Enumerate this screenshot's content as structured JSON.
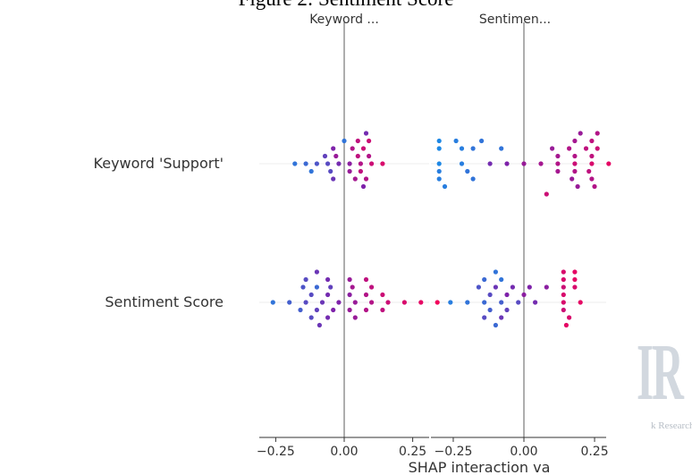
{
  "figure_title": "Figure 2: Sentiment Score",
  "watermark": {
    "logo_text": "IR",
    "text": "k Research"
  },
  "chart_data": {
    "type": "scatter",
    "plot": "shap_interaction_summary",
    "xlabel": "SHAP interaction va",
    "rows": [
      "Keyword 'Support'",
      "Sentiment Score"
    ],
    "columns": [
      "Keyword ...",
      "Sentimen..."
    ],
    "xlim": [
      -0.3,
      0.32
    ],
    "ticks": [
      -0.25,
      0.0,
      0.25
    ],
    "tick_labels": [
      "−0.25",
      "0.00",
      "0.25"
    ],
    "grid": false,
    "legend": "none",
    "colormap": {
      "low": "#1e88e5",
      "high": "#ff0052"
    },
    "point_lanes": [
      -4,
      -3,
      -2,
      -1,
      0,
      1,
      2,
      3,
      4
    ],
    "panels": [
      {
        "row": "Keyword 'Support'",
        "column": "Keyword ...",
        "points": [
          [
            0.08,
            -4,
            0.45
          ],
          [
            0.0,
            -3,
            0.1
          ],
          [
            0.05,
            -3,
            0.75
          ],
          [
            0.09,
            -3,
            0.8
          ],
          [
            -0.04,
            -2,
            0.5
          ],
          [
            0.03,
            -2,
            0.7
          ],
          [
            0.07,
            -2,
            0.8
          ],
          [
            -0.07,
            -1,
            0.35
          ],
          [
            -0.03,
            -1,
            0.6
          ],
          [
            0.05,
            -1,
            0.75
          ],
          [
            0.09,
            -1,
            0.7
          ],
          [
            -0.18,
            0,
            0.1
          ],
          [
            -0.14,
            0,
            0.15
          ],
          [
            -0.1,
            0,
            0.25
          ],
          [
            -0.06,
            0,
            0.3
          ],
          [
            -0.02,
            0,
            0.45
          ],
          [
            0.02,
            0,
            0.55
          ],
          [
            0.06,
            0,
            0.7
          ],
          [
            0.1,
            0,
            0.8
          ],
          [
            0.14,
            0,
            0.85
          ],
          [
            -0.12,
            1,
            0.1
          ],
          [
            -0.05,
            1,
            0.3
          ],
          [
            0.02,
            1,
            0.6
          ],
          [
            0.06,
            1,
            0.75
          ],
          [
            -0.04,
            2,
            0.4
          ],
          [
            0.04,
            2,
            0.65
          ],
          [
            0.08,
            2,
            0.7
          ],
          [
            0.07,
            3,
            0.5
          ]
        ]
      },
      {
        "row": "Keyword 'Support'",
        "column": "Sentimen...",
        "points": [
          [
            0.2,
            -4,
            0.6
          ],
          [
            0.26,
            -4,
            0.7
          ],
          [
            -0.3,
            -3,
            0.0
          ],
          [
            -0.24,
            -3,
            0.05
          ],
          [
            -0.15,
            -3,
            0.1
          ],
          [
            0.18,
            -3,
            0.65
          ],
          [
            0.24,
            -3,
            0.75
          ],
          [
            -0.3,
            -2,
            0.0
          ],
          [
            -0.22,
            -2,
            0.05
          ],
          [
            -0.18,
            -2,
            0.1
          ],
          [
            -0.08,
            -2,
            0.1
          ],
          [
            0.1,
            -2,
            0.6
          ],
          [
            0.16,
            -2,
            0.7
          ],
          [
            0.22,
            -2,
            0.75
          ],
          [
            0.26,
            -2,
            0.8
          ],
          [
            0.12,
            -1,
            0.65
          ],
          [
            0.18,
            -1,
            0.7
          ],
          [
            0.24,
            -1,
            0.75
          ],
          [
            -0.3,
            0,
            0.0
          ],
          [
            -0.22,
            0,
            0.05
          ],
          [
            -0.12,
            0,
            0.45
          ],
          [
            -0.06,
            0,
            0.5
          ],
          [
            0.0,
            0,
            0.6
          ],
          [
            0.06,
            0,
            0.65
          ],
          [
            0.12,
            0,
            0.7
          ],
          [
            0.18,
            0,
            0.8
          ],
          [
            0.24,
            0,
            0.85
          ],
          [
            0.3,
            0,
            0.9
          ],
          [
            -0.3,
            1,
            0.05
          ],
          [
            -0.2,
            1,
            0.1
          ],
          [
            0.12,
            1,
            0.65
          ],
          [
            0.18,
            1,
            0.7
          ],
          [
            0.23,
            1,
            0.75
          ],
          [
            -0.3,
            2,
            0.05
          ],
          [
            -0.18,
            2,
            0.1
          ],
          [
            0.17,
            2,
            0.6
          ],
          [
            0.24,
            2,
            0.7
          ],
          [
            -0.28,
            3,
            0.05
          ],
          [
            0.19,
            3,
            0.6
          ],
          [
            0.25,
            3,
            0.7
          ],
          [
            0.08,
            4,
            0.8
          ]
        ]
      },
      {
        "row": "Sentiment Score",
        "column": "Keyword ...",
        "points": [
          [
            -0.1,
            -4,
            0.4
          ],
          [
            -0.14,
            -3,
            0.3
          ],
          [
            -0.06,
            -3,
            0.45
          ],
          [
            0.02,
            -3,
            0.6
          ],
          [
            0.08,
            -3,
            0.75
          ],
          [
            -0.15,
            -2,
            0.25
          ],
          [
            -0.1,
            -2,
            0.15
          ],
          [
            -0.05,
            -2,
            0.35
          ],
          [
            0.03,
            -2,
            0.65
          ],
          [
            0.1,
            -2,
            0.75
          ],
          [
            -0.12,
            -1,
            0.3
          ],
          [
            -0.06,
            -1,
            0.45
          ],
          [
            0.02,
            -1,
            0.55
          ],
          [
            0.08,
            -1,
            0.7
          ],
          [
            0.14,
            -1,
            0.8
          ],
          [
            -0.26,
            0,
            0.1
          ],
          [
            -0.2,
            0,
            0.2
          ],
          [
            -0.14,
            0,
            0.3
          ],
          [
            -0.08,
            0,
            0.4
          ],
          [
            -0.02,
            0,
            0.5
          ],
          [
            0.04,
            0,
            0.6
          ],
          [
            0.1,
            0,
            0.7
          ],
          [
            0.16,
            0,
            0.8
          ],
          [
            0.22,
            0,
            0.85
          ],
          [
            0.28,
            0,
            0.9
          ],
          [
            0.34,
            0,
            0.95
          ],
          [
            -0.16,
            1,
            0.2
          ],
          [
            -0.1,
            1,
            0.35
          ],
          [
            -0.04,
            1,
            0.5
          ],
          [
            0.02,
            1,
            0.6
          ],
          [
            0.08,
            1,
            0.7
          ],
          [
            0.14,
            1,
            0.75
          ],
          [
            -0.12,
            2,
            0.3
          ],
          [
            -0.06,
            2,
            0.45
          ],
          [
            0.04,
            2,
            0.6
          ],
          [
            -0.09,
            3,
            0.4
          ]
        ]
      },
      {
        "row": "Sentiment Score",
        "column": "Sentimen...",
        "points": [
          [
            -0.1,
            -4,
            0.1
          ],
          [
            0.14,
            -4,
            0.85
          ],
          [
            0.18,
            -4,
            0.9
          ],
          [
            -0.14,
            -3,
            0.15
          ],
          [
            -0.08,
            -3,
            0.1
          ],
          [
            0.14,
            -3,
            0.85
          ],
          [
            0.18,
            -3,
            0.9
          ],
          [
            -0.16,
            -2,
            0.25
          ],
          [
            -0.1,
            -2,
            0.4
          ],
          [
            -0.04,
            -2,
            0.45
          ],
          [
            0.02,
            -2,
            0.5
          ],
          [
            0.08,
            -2,
            0.55
          ],
          [
            0.14,
            -2,
            0.8
          ],
          [
            0.18,
            -2,
            0.85
          ],
          [
            -0.12,
            -1,
            0.3
          ],
          [
            -0.06,
            -1,
            0.5
          ],
          [
            0.0,
            -1,
            0.55
          ],
          [
            0.14,
            -1,
            0.85
          ],
          [
            -0.26,
            0,
            0.05
          ],
          [
            -0.2,
            0,
            0.1
          ],
          [
            -0.14,
            0,
            0.15
          ],
          [
            -0.08,
            0,
            0.2
          ],
          [
            -0.02,
            0,
            0.3
          ],
          [
            0.04,
            0,
            0.45
          ],
          [
            0.14,
            0,
            0.85
          ],
          [
            0.2,
            0,
            0.9
          ],
          [
            -0.12,
            1,
            0.2
          ],
          [
            -0.06,
            1,
            0.35
          ],
          [
            0.14,
            1,
            0.8
          ],
          [
            -0.14,
            2,
            0.3
          ],
          [
            -0.08,
            2,
            0.4
          ],
          [
            0.16,
            2,
            0.85
          ],
          [
            -0.1,
            3,
            0.15
          ],
          [
            0.15,
            3,
            0.9
          ]
        ]
      }
    ]
  }
}
